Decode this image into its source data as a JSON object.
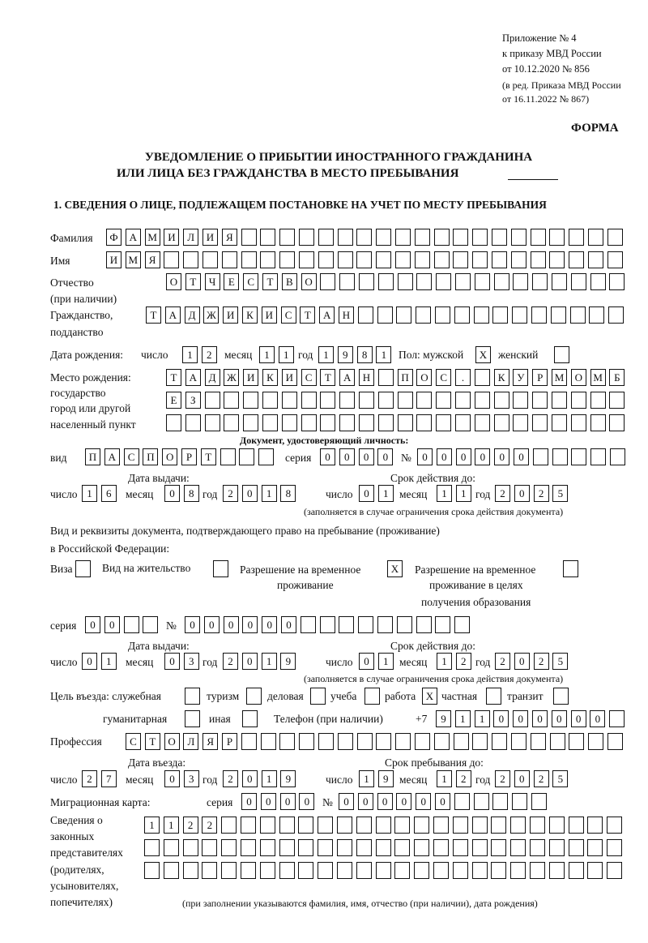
{
  "header": {
    "appendix": "Приложение № 4",
    "order": "к приказу МВД России",
    "order_date": "от 10.12.2020 № 856",
    "revision": "(в ред. Приказа МВД России",
    "revision_date": "от 16.11.2022 № 867)",
    "form_label": "ФОРМА",
    "title_line1": "УВЕДОМЛЕНИЕ О ПРИБЫТИИ ИНОСТРАННОГО ГРАЖДАНИНА",
    "title_line2": "ИЛИ ЛИЦА БЕЗ ГРАЖДАНСТВА В МЕСТО ПРЕБЫВАНИЯ",
    "section1": "1. СВЕДЕНИЯ О ЛИЦЕ, ПОДЛЕЖАЩЕМ ПОСТАНОВКЕ НА УЧЕТ ПО МЕСТУ ПРЕБЫВАНИЯ"
  },
  "labels": {
    "surname": "Фамилия",
    "name": "Имя",
    "patronymic": "Отчество",
    "patronymic_note": "(при наличии)",
    "citizenship": "Гражданство,",
    "citizenship2": "подданство",
    "birth_date": "Дата рождения:",
    "day": "число",
    "month": "месяц",
    "year": "год",
    "sex": "Пол: мужской",
    "female": "женский",
    "birth_place": "Место рождения:",
    "birth_place2": "государство",
    "birth_place3": "город или другой",
    "birth_place4": "населенный пункт",
    "id_doc": "Документ, удостоверяющий личность:",
    "kind": "вид",
    "series": "серия",
    "number": "№",
    "issue_date": "Дата выдачи:",
    "valid_until": "Срок действия до:",
    "validity_note": "(заполняется в случае ограничения срока действия документа)",
    "stay_doc": "Вид и реквизиты документа, подтверждающего право на пребывание (проживание)",
    "stay_doc2": "в Российской Федерации:",
    "visa": "Виза",
    "residence": "Вид на жительство",
    "trp1": "Разрешение на временное",
    "trp2": "проживание",
    "trpe1": "Разрешение на временное",
    "trpe2": "проживание в целях",
    "trpe3": "получения образования",
    "purpose": "Цель въезда: служебная",
    "tourism": "туризм",
    "business": "деловая",
    "study": "учеба",
    "work": "работа",
    "private": "частная",
    "transit": "транзит",
    "humanitarian": "гуманитарная",
    "other": "иная",
    "phone": "Телефон (при наличии)",
    "phone_prefix": "+7",
    "profession": "Профессия",
    "entry_date": "Дата въезда:",
    "stay_until": "Срок пребывания до:",
    "migration_card": "Миграционная карта:",
    "reps1": "Сведения о",
    "reps2": "законных",
    "reps3": "представителях",
    "reps4": "(родителях,",
    "reps5": "усыновителях,",
    "reps6": "попечителях)",
    "reps_note": "(при заполнении указываются фамилия, имя, отчество (при наличии), дата рождения)"
  },
  "values": {
    "surname": [
      "Ф",
      "А",
      "М",
      "И",
      "Л",
      "И",
      "Я"
    ],
    "name": [
      "И",
      "М",
      "Я"
    ],
    "patronymic": [
      "О",
      "Т",
      "Ч",
      "Е",
      "С",
      "Т",
      "В",
      "О"
    ],
    "citizenship": [
      "Т",
      "А",
      "Д",
      "Ж",
      "И",
      "К",
      "И",
      "С",
      "Т",
      "А",
      "Н"
    ],
    "birth_day": [
      "1",
      "2"
    ],
    "birth_month": [
      "1",
      "1"
    ],
    "birth_year": [
      "1",
      "9",
      "8",
      "1"
    ],
    "sex_male": "X",
    "sex_female": "",
    "birth_place_1": [
      "Т",
      "А",
      "Д",
      "Ж",
      "И",
      "К",
      "И",
      "С",
      "Т",
      "А",
      "Н",
      "",
      "П",
      "О",
      "С",
      ".",
      " ",
      "К",
      "У",
      "Р",
      "М",
      "О",
      "М",
      "Б"
    ],
    "birth_place_2": [
      "Е",
      "З"
    ],
    "birth_place_3": [],
    "id_kind": [
      "П",
      "А",
      "С",
      "П",
      "О",
      "Р",
      "Т"
    ],
    "id_series": [
      "0",
      "0",
      "0",
      "0"
    ],
    "id_number": [
      "0",
      "0",
      "0",
      "0",
      "0",
      "0"
    ],
    "id_issue_day": [
      "1",
      "6"
    ],
    "id_issue_month": [
      "0",
      "8"
    ],
    "id_issue_year": [
      "2",
      "0",
      "1",
      "8"
    ],
    "id_valid_day": [
      "0",
      "1"
    ],
    "id_valid_month": [
      "1",
      "1"
    ],
    "id_valid_year": [
      "2",
      "0",
      "2",
      "5"
    ],
    "visa": "",
    "residence": "",
    "trp": "X",
    "trpe": "",
    "stay_series": [
      "0",
      "0"
    ],
    "stay_number": [
      "0",
      "0",
      "0",
      "0",
      "0",
      "0"
    ],
    "stay_issue_day": [
      "0",
      "1"
    ],
    "stay_issue_month": [
      "0",
      "3"
    ],
    "stay_issue_year": [
      "2",
      "0",
      "1",
      "9"
    ],
    "stay_valid_day": [
      "0",
      "1"
    ],
    "stay_valid_month": [
      "1",
      "2"
    ],
    "stay_valid_year": [
      "2",
      "0",
      "2",
      "5"
    ],
    "purpose_official": "",
    "purpose_tourism": "",
    "purpose_business": "",
    "purpose_study": "",
    "purpose_work": "X",
    "purpose_private": "",
    "purpose_transit": "",
    "purpose_humanitarian": "",
    "purpose_other": "",
    "phone": [
      "9",
      "1",
      "1",
      "0",
      "0",
      "0",
      "0",
      "0",
      "0"
    ],
    "profession": [
      "С",
      "Т",
      "О",
      "Л",
      "Я",
      "Р"
    ],
    "entry_day": [
      "2",
      "7"
    ],
    "entry_month": [
      "0",
      "3"
    ],
    "entry_year": [
      "2",
      "0",
      "1",
      "9"
    ],
    "stay_until_day": [
      "1",
      "9"
    ],
    "stay_until_month": [
      "1",
      "2"
    ],
    "stay_until_year": [
      "2",
      "0",
      "2",
      "5"
    ],
    "mc_series": [
      "0",
      "0",
      "0",
      "0"
    ],
    "mc_number": [
      "0",
      "0",
      "0",
      "0",
      "0",
      "0"
    ],
    "reps_1": [
      "1",
      "1",
      "2",
      "2"
    ],
    "reps_2": [],
    "reps_3": []
  }
}
